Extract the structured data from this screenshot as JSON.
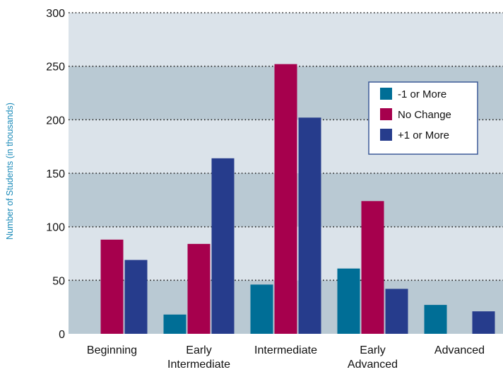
{
  "chart_data": {
    "type": "bar",
    "title": "",
    "xlabel": "",
    "ylabel": "Number of Students (in thousands)",
    "ylim": [
      0,
      300
    ],
    "yticks": [
      0,
      50,
      100,
      150,
      200,
      250,
      300
    ],
    "grid": true,
    "legend_position": "top-right",
    "categories": [
      [
        "Beginning"
      ],
      [
        "Early",
        "Intermediate"
      ],
      [
        "Intermediate"
      ],
      [
        "Early",
        "Advanced"
      ],
      [
        "Advanced"
      ]
    ],
    "series": [
      {
        "name": "-1 or More",
        "color": "#006e96",
        "values": [
          0,
          18,
          46,
          61,
          27
        ]
      },
      {
        "name": "No Change",
        "color": "#a6004d",
        "values": [
          88,
          84,
          252,
          124,
          0
        ]
      },
      {
        "name": "+1 or More",
        "color": "#263c8c",
        "values": [
          69,
          164,
          202,
          42,
          21
        ]
      }
    ],
    "band_colors": [
      "#b9c9d3",
      "#dbe3ea"
    ]
  }
}
